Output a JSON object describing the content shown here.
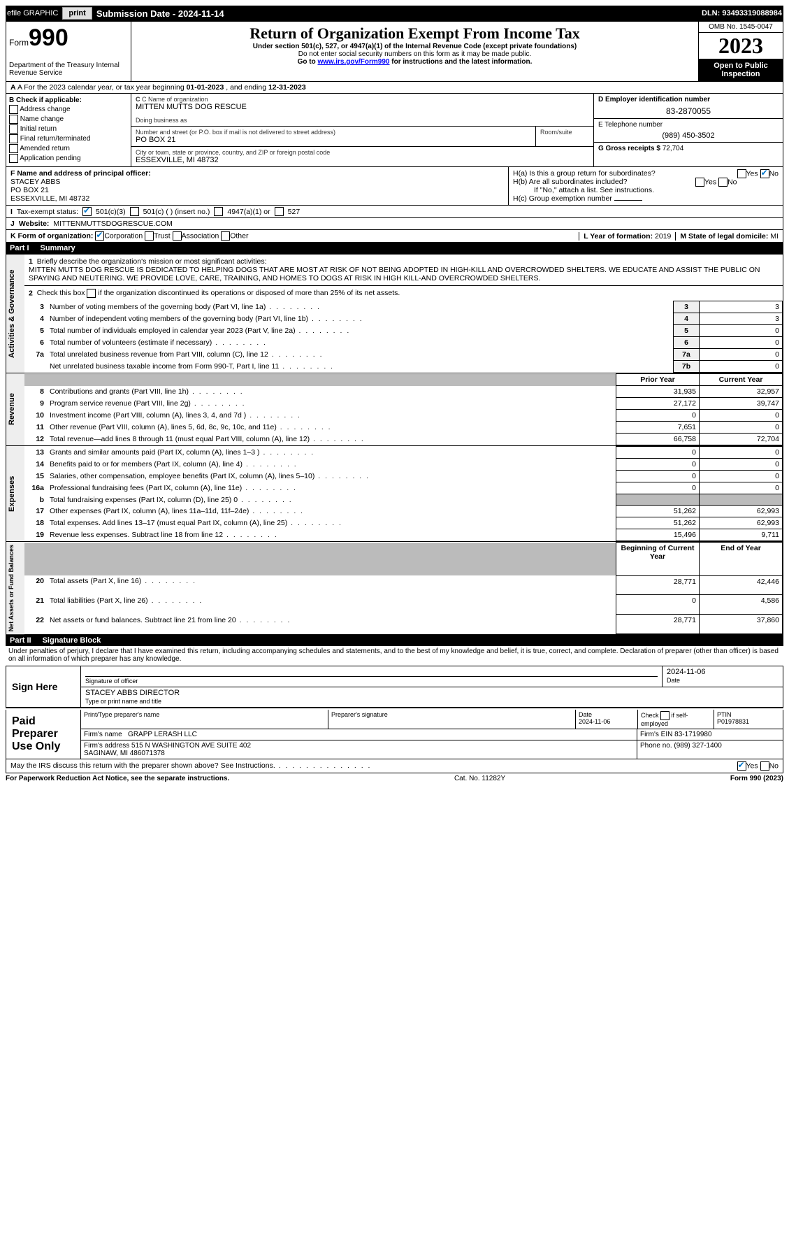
{
  "topbar": {
    "efile": "efile GRAPHIC",
    "print": "print",
    "subdate_lbl": "Submission Date - ",
    "subdate": "2024-11-14",
    "dln_lbl": "DLN: ",
    "dln": "93493319088984"
  },
  "header": {
    "form": "Form",
    "num": "990",
    "dept": "Department of the Treasury\nInternal Revenue Service",
    "title": "Return of Organization Exempt From Income Tax",
    "sub": "Under section 501(c), 527, or 4947(a)(1) of the Internal Revenue Code (except private foundations)",
    "warn": "Do not enter social security numbers on this form as it may be made public.",
    "link_pre": "Go to ",
    "link": "www.irs.gov/Form990",
    "link_post": " for instructions and the latest information.",
    "omb": "OMB No. 1545-0047",
    "year": "2023",
    "otp": "Open to Public Inspection"
  },
  "row_a": {
    "text_pre": "A For the 2023 calendar year, or tax year beginning ",
    "begin": "01-01-2023",
    "mid": " , and ending ",
    "end": "12-31-2023"
  },
  "col_b": {
    "hdr": "B Check if applicable:",
    "items": [
      "Address change",
      "Name change",
      "Initial return",
      "Final return/terminated",
      "Amended return",
      "Application pending"
    ]
  },
  "c": {
    "name_lbl": "C Name of organization",
    "name": "MITTEN MUTTS DOG RESCUE",
    "dba_lbl": "Doing business as",
    "addr_lbl": "Number and street (or P.O. box if mail is not delivered to street address)",
    "room_lbl": "Room/suite",
    "addr": "PO BOX 21",
    "city_lbl": "City or town, state or province, country, and ZIP or foreign postal code",
    "city": "ESSEXVILLE, MI  48732"
  },
  "d": {
    "lbl": "D Employer identification number",
    "val": "83-2870055"
  },
  "e": {
    "lbl": "E Telephone number",
    "val": "(989) 450-3502"
  },
  "g": {
    "lbl": "G Gross receipts $ ",
    "val": "72,704"
  },
  "f": {
    "lbl": "F Name and address of principal officer:",
    "name": "STACEY ABBS",
    "addr1": "PO BOX 21",
    "addr2": "ESSEXVILLE, MI  48732"
  },
  "h": {
    "a": "H(a)  Is this a group return for subordinates?",
    "b": "H(b)  Are all subordinates included?",
    "b_note": "If \"No,\" attach a list. See instructions.",
    "c": "H(c)  Group exemption number ",
    "yes": "Yes",
    "no": "No"
  },
  "i": {
    "lbl": "Tax-exempt status:",
    "o1": "501(c)(3)",
    "o2": "501(c) (  ) (insert no.)",
    "o3": "4947(a)(1) or",
    "o4": "527"
  },
  "j": {
    "lbl": "Website:",
    "val": "MITTENMUTTSDOGRESCUE.COM"
  },
  "k": {
    "lbl": "K Form of organization:",
    "o1": "Corporation",
    "o2": "Trust",
    "o3": "Association",
    "o4": "Other"
  },
  "l": {
    "lbl": "L Year of formation: ",
    "val": "2019"
  },
  "m": {
    "lbl": "M State of legal domicile: ",
    "val": "MI"
  },
  "part1": {
    "num": "Part I",
    "title": "Summary"
  },
  "mission": {
    "q": "Briefly describe the organization's mission or most significant activities:",
    "text": "MITTEN MUTTS DOG RESCUE IS DEDICATED TO HELPING DOGS THAT ARE MOST AT RISK OF NOT BEING ADOPTED IN HIGH-KILL AND OVERCROWDED SHELTERS. WE EDUCATE AND ASSIST THE PUBLIC ON SPAYING AND NEUTERING. WE PROVIDE LOVE, CARE, TRAINING, AND HOMES TO DOGS AT RISK IN HIGH KILL-AND OVERCROWDED SHELTERS."
  },
  "line2": "Check this box      if the organization discontinued its operations or disposed of more than 25% of its net assets.",
  "gov_rows": [
    {
      "n": "3",
      "t": "Number of voting members of the governing body (Part VI, line 1a)",
      "box": "3",
      "v": "3"
    },
    {
      "n": "4",
      "t": "Number of independent voting members of the governing body (Part VI, line 1b)",
      "box": "4",
      "v": "3"
    },
    {
      "n": "5",
      "t": "Total number of individuals employed in calendar year 2023 (Part V, line 2a)",
      "box": "5",
      "v": "0"
    },
    {
      "n": "6",
      "t": "Total number of volunteers (estimate if necessary)",
      "box": "6",
      "v": "0"
    },
    {
      "n": "7a",
      "t": "Total unrelated business revenue from Part VIII, column (C), line 12",
      "box": "7a",
      "v": "0"
    },
    {
      "n": "",
      "t": "Net unrelated business taxable income from Form 990-T, Part I, line 11",
      "box": "7b",
      "v": "0"
    }
  ],
  "col_hdrs": {
    "prior": "Prior Year",
    "current": "Current Year",
    "begin": "Beginning of Current Year",
    "end": "End of Year"
  },
  "rev_rows": [
    {
      "n": "8",
      "t": "Contributions and grants (Part VIII, line 1h)",
      "p": "31,935",
      "c": "32,957"
    },
    {
      "n": "9",
      "t": "Program service revenue (Part VIII, line 2g)",
      "p": "27,172",
      "c": "39,747"
    },
    {
      "n": "10",
      "t": "Investment income (Part VIII, column (A), lines 3, 4, and 7d )",
      "p": "0",
      "c": "0"
    },
    {
      "n": "11",
      "t": "Other revenue (Part VIII, column (A), lines 5, 6d, 8c, 9c, 10c, and 11e)",
      "p": "7,651",
      "c": "0"
    },
    {
      "n": "12",
      "t": "Total revenue—add lines 8 through 11 (must equal Part VIII, column (A), line 12)",
      "p": "66,758",
      "c": "72,704"
    }
  ],
  "exp_rows": [
    {
      "n": "13",
      "t": "Grants and similar amounts paid (Part IX, column (A), lines 1–3 )",
      "p": "0",
      "c": "0"
    },
    {
      "n": "14",
      "t": "Benefits paid to or for members (Part IX, column (A), line 4)",
      "p": "0",
      "c": "0"
    },
    {
      "n": "15",
      "t": "Salaries, other compensation, employee benefits (Part IX, column (A), lines 5–10)",
      "p": "0",
      "c": "0"
    },
    {
      "n": "16a",
      "t": "Professional fundraising fees (Part IX, column (A), line 11e)",
      "p": "0",
      "c": "0"
    },
    {
      "n": "b",
      "t": "Total fundraising expenses (Part IX, column (D), line 25) 0",
      "p": "shade",
      "c": "shade"
    },
    {
      "n": "17",
      "t": "Other expenses (Part IX, column (A), lines 11a–11d, 11f–24e)",
      "p": "51,262",
      "c": "62,993"
    },
    {
      "n": "18",
      "t": "Total expenses. Add lines 13–17 (must equal Part IX, column (A), line 25)",
      "p": "51,262",
      "c": "62,993"
    },
    {
      "n": "19",
      "t": "Revenue less expenses. Subtract line 18 from line 12",
      "p": "15,496",
      "c": "9,711"
    }
  ],
  "net_rows": [
    {
      "n": "20",
      "t": "Total assets (Part X, line 16)",
      "p": "28,771",
      "c": "42,446"
    },
    {
      "n": "21",
      "t": "Total liabilities (Part X, line 26)",
      "p": "0",
      "c": "4,586"
    },
    {
      "n": "22",
      "t": "Net assets or fund balances. Subtract line 21 from line 20",
      "p": "28,771",
      "c": "37,860"
    }
  ],
  "vlabels": {
    "gov": "Activities & Governance",
    "rev": "Revenue",
    "exp": "Expenses",
    "net": "Net Assets or Fund Balances"
  },
  "part2": {
    "num": "Part II",
    "title": "Signature Block"
  },
  "perjury": "Under penalties of perjury, I declare that I have examined this return, including accompanying schedules and statements, and to the best of my knowledge and belief, it is true, correct, and complete. Declaration of preparer (other than officer) is based on all information of which preparer has any knowledge.",
  "sign": {
    "here_lbl": "Sign Here",
    "sig_lbl": "Signature of officer",
    "date_lbl": "Date",
    "date": "2024-11-06",
    "name_lbl": "Type or print name and title",
    "name": "STACEY ABBS DIRECTOR"
  },
  "paid": {
    "lbl": "Paid Preparer Use Only",
    "col1": "Print/Type preparer's name",
    "col2": "Preparer's signature",
    "col3_lbl": "Date",
    "col3": "2024-11-06",
    "col4_lbl": "Check          if self-employed",
    "col5_lbl": "PTIN",
    "col5": "P01978831",
    "firm_lbl": "Firm's name",
    "firm": "GRAPP LERASH LLC",
    "ein_lbl": "Firm's EIN ",
    "ein": "83-1719980",
    "addr_lbl": "Firm's address",
    "addr": "515 N WASHINGTON AVE SUITE 402\nSAGINAW, MI  486071378",
    "phone_lbl": "Phone no. ",
    "phone": "(989) 327-1400"
  },
  "discuss": "May the IRS discuss this return with the preparer shown above? See Instructions.",
  "footer": {
    "left": "For Paperwork Reduction Act Notice, see the separate instructions.",
    "mid": "Cat. No. 11282Y",
    "right": "Form 990 (2023)"
  }
}
